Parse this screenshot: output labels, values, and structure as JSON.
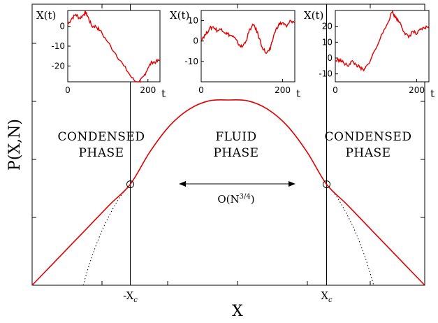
{
  "chart_data": {
    "type": "line",
    "title": "",
    "xlabel": "X",
    "ylabel": "P(X,N)",
    "x_tick_labels": [
      "-X",
      "X"
    ],
    "x_tick_sub": "c",
    "xlim": [
      -1.0,
      1.0
    ],
    "critical_x": [
      -0.5,
      0.5
    ],
    "regions": [
      {
        "line1": "CONDENSED",
        "line2": "PHASE"
      },
      {
        "line1": "FLUID",
        "line2": "PHASE"
      },
      {
        "line1": "CONDENSED",
        "line2": "PHASE"
      }
    ],
    "annotation": {
      "base": "O(N",
      "exponent": "3/4",
      "close": ")"
    },
    "series": [
      {
        "style": "solid",
        "color": "#e00000",
        "x": [
          -1.0,
          -0.9,
          -0.8,
          -0.7,
          -0.6,
          -0.5,
          -0.4,
          -0.3,
          -0.2,
          -0.1,
          0.0,
          0.1,
          0.2,
          0.3,
          0.4,
          0.5,
          0.6,
          0.7,
          0.8,
          0.9,
          1.0
        ],
        "y": [
          0.0,
          0.11,
          0.22,
          0.33,
          0.44,
          0.545,
          0.72,
          0.86,
          0.95,
          0.995,
          1.0,
          0.995,
          0.95,
          0.86,
          0.72,
          0.545,
          0.44,
          0.33,
          0.22,
          0.11,
          0.0
        ]
      },
      {
        "style": "dotted",
        "color": "#000000",
        "x": [
          -0.74,
          -0.7,
          -0.65,
          -0.6,
          -0.55,
          -0.5
        ],
        "y": [
          0.0,
          0.14,
          0.28,
          0.39,
          0.48,
          0.545
        ]
      },
      {
        "style": "dotted",
        "color": "#000000",
        "x": [
          0.5,
          0.55,
          0.6,
          0.65,
          0.7,
          0.74
        ],
        "y": [
          0.545,
          0.48,
          0.39,
          0.28,
          0.14,
          0.0
        ]
      }
    ],
    "insets": [
      {
        "ylabel": "X(t)",
        "xlabel": "t",
        "xlim": [
          0,
          230
        ],
        "ylim": [
          -28,
          8
        ],
        "yticks": [
          0,
          -10,
          -20
        ],
        "xticks": [
          0,
          200
        ],
        "series": {
          "x": [
            0,
            10,
            20,
            30,
            40,
            45,
            50,
            60,
            70,
            80,
            100,
            120,
            140,
            160,
            175,
            180,
            190,
            200,
            210,
            220,
            230
          ],
          "y": [
            1,
            4,
            6,
            4,
            6,
            7,
            5,
            0,
            0,
            -2,
            -8,
            -14,
            -20,
            -26,
            -29,
            -28,
            -25,
            -21,
            -18,
            -18,
            -17
          ]
        }
      },
      {
        "ylabel": "X(t)",
        "xlabel": "t",
        "xlim": [
          0,
          230
        ],
        "ylim": [
          -20,
          15
        ],
        "yticks": [
          10,
          0,
          -10
        ],
        "xticks": [
          0,
          200
        ],
        "series": {
          "x": [
            0,
            10,
            20,
            30,
            40,
            50,
            60,
            70,
            80,
            90,
            100,
            110,
            120,
            130,
            140,
            150,
            160,
            170,
            180,
            190,
            200,
            210,
            220,
            230
          ],
          "y": [
            1,
            3,
            6,
            7,
            5,
            6,
            4,
            3,
            2,
            -1,
            -3,
            0,
            6,
            8,
            3,
            -3,
            -6,
            -4,
            4,
            8,
            9,
            7,
            10,
            9
          ]
        }
      },
      {
        "ylabel": "X(t)",
        "xlabel": "t",
        "xlim": [
          0,
          230
        ],
        "ylim": [
          -15,
          30
        ],
        "yticks": [
          20,
          10,
          0,
          -10
        ],
        "xticks": [
          0,
          200
        ],
        "series": {
          "x": [
            0,
            10,
            20,
            30,
            40,
            50,
            60,
            70,
            80,
            100,
            120,
            140,
            145,
            150,
            160,
            170,
            180,
            190,
            200,
            210,
            220,
            230
          ],
          "y": [
            -2,
            -1,
            -3,
            -5,
            -2,
            -4,
            -6,
            -8,
            -4,
            6,
            18,
            29,
            27,
            25,
            22,
            16,
            13,
            17,
            15,
            18,
            19,
            20
          ]
        }
      }
    ]
  }
}
